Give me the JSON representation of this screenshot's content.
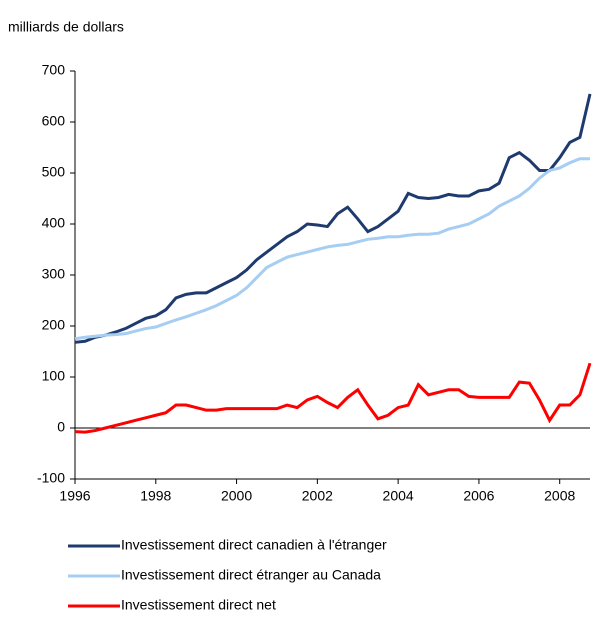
{
  "chart_data": {
    "type": "line",
    "ylabel": "milliards de dollars",
    "x": [
      1996,
      1996.25,
      1996.5,
      1996.75,
      1997,
      1997.25,
      1997.5,
      1997.75,
      1998,
      1998.25,
      1998.5,
      1998.75,
      1999,
      1999.25,
      1999.5,
      1999.75,
      2000,
      2000.25,
      2000.5,
      2000.75,
      2001,
      2001.25,
      2001.5,
      2001.75,
      2002,
      2002.25,
      2002.5,
      2002.75,
      2003,
      2003.25,
      2003.5,
      2003.75,
      2004,
      2004.25,
      2004.5,
      2004.75,
      2005,
      2005.25,
      2005.5,
      2005.75,
      2006,
      2006.25,
      2006.5,
      2006.75,
      2007,
      2007.25,
      2007.5,
      2007.75,
      2008,
      2008.25,
      2008.5,
      2008.75
    ],
    "series": [
      {
        "name": "Investissement direct canadien à l'étranger",
        "color": "#1f3a6e",
        "values": [
          168,
          170,
          178,
          182,
          188,
          195,
          205,
          215,
          220,
          232,
          255,
          262,
          265,
          265,
          275,
          285,
          295,
          310,
          330,
          345,
          360,
          375,
          385,
          400,
          398,
          395,
          420,
          433,
          410,
          385,
          395,
          410,
          425,
          460,
          452,
          450,
          452,
          458,
          455,
          455,
          465,
          468,
          480,
          530,
          540,
          525,
          505,
          505,
          530,
          560,
          570,
          655
        ]
      },
      {
        "name": "Investissement direct étranger au Canada",
        "color": "#a6cdf2",
        "values": [
          175,
          178,
          180,
          182,
          183,
          185,
          190,
          195,
          198,
          205,
          212,
          218,
          225,
          232,
          240,
          250,
          260,
          275,
          295,
          315,
          325,
          335,
          340,
          345,
          350,
          355,
          358,
          360,
          365,
          370,
          372,
          375,
          375,
          378,
          380,
          380,
          382,
          390,
          395,
          400,
          410,
          420,
          435,
          445,
          455,
          470,
          490,
          505,
          510,
          520,
          528,
          528
        ]
      },
      {
        "name": "Investissement direct net",
        "color": "#ff0000",
        "values": [
          -7,
          -8,
          -5,
          0,
          5,
          10,
          15,
          20,
          25,
          30,
          45,
          45,
          40,
          35,
          35,
          38,
          38,
          38,
          38,
          38,
          38,
          45,
          40,
          55,
          62,
          50,
          40,
          60,
          75,
          45,
          18,
          25,
          40,
          45,
          85,
          65,
          70,
          75,
          75,
          62,
          60,
          60,
          60,
          60,
          90,
          88,
          55,
          15,
          45,
          45,
          65,
          127
        ]
      }
    ],
    "xlim": [
      1996,
      2008.75
    ],
    "xticks": [
      1996,
      1998,
      2000,
      2002,
      2004,
      2006,
      2008
    ],
    "ylim": [
      -100,
      700
    ],
    "yticks": [
      -100,
      0,
      100,
      200,
      300,
      400,
      500,
      600,
      700
    ],
    "grid": false
  }
}
